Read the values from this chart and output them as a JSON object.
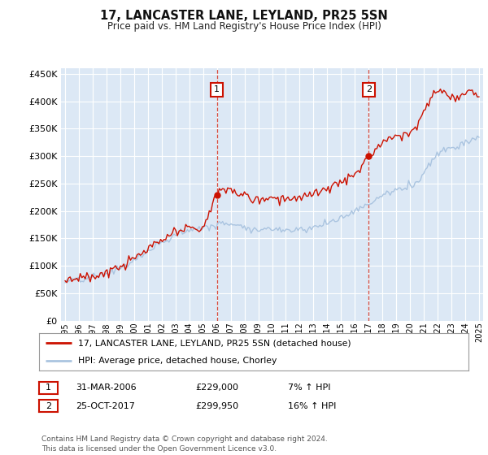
{
  "title": "17, LANCASTER LANE, LEYLAND, PR25 5SN",
  "subtitle": "Price paid vs. HM Land Registry's House Price Index (HPI)",
  "ylim": [
    0,
    460000
  ],
  "yticks": [
    0,
    50000,
    100000,
    150000,
    200000,
    250000,
    300000,
    350000,
    400000,
    450000
  ],
  "background_color": "#dce8f5",
  "grid_color": "#ffffff",
  "sale1_x": 11,
  "sale1_price": 229000,
  "sale2_x": 22,
  "sale2_price": 299950,
  "legend_line1": "17, LANCASTER LANE, LEYLAND, PR25 5SN (detached house)",
  "legend_line2": "HPI: Average price, detached house, Chorley",
  "table_row1": [
    "1",
    "31-MAR-2006",
    "£229,000",
    "7% ↑ HPI"
  ],
  "table_row2": [
    "2",
    "25-OCT-2017",
    "£299,950",
    "16% ↑ HPI"
  ],
  "footnote": "Contains HM Land Registry data © Crown copyright and database right 2024.\nThis data is licensed under the Open Government Licence v3.0.",
  "hpi_color": "#aac4e0",
  "price_color": "#cc1100",
  "years": [
    "1995",
    "1996",
    "1997",
    "1998",
    "1999",
    "2000",
    "2001",
    "2002",
    "2003",
    "2004",
    "2005",
    "2006",
    "2007",
    "2008",
    "2009",
    "2010",
    "2011",
    "2012",
    "2013",
    "2014",
    "2015",
    "2016",
    "2017",
    "2018",
    "2019",
    "2020",
    "2021",
    "2022",
    "2023",
    "2024",
    "2025"
  ],
  "hpi_values": [
    72000,
    74000,
    79000,
    86000,
    96000,
    110000,
    126000,
    142000,
    156000,
    165000,
    170000,
    174000,
    178000,
    172000,
    165000,
    168000,
    166000,
    167000,
    170000,
    178000,
    188000,
    200000,
    213000,
    228000,
    238000,
    245000,
    270000,
    305000,
    315000,
    325000,
    335000
  ],
  "price_values": [
    75000,
    77000,
    80000,
    88000,
    98000,
    113000,
    130000,
    146000,
    160000,
    168000,
    173000,
    229000,
    238000,
    228000,
    220000,
    225000,
    223000,
    225000,
    230000,
    240000,
    253000,
    265000,
    299950,
    325000,
    338000,
    345000,
    378000,
    420000,
    405000,
    415000,
    408000
  ]
}
